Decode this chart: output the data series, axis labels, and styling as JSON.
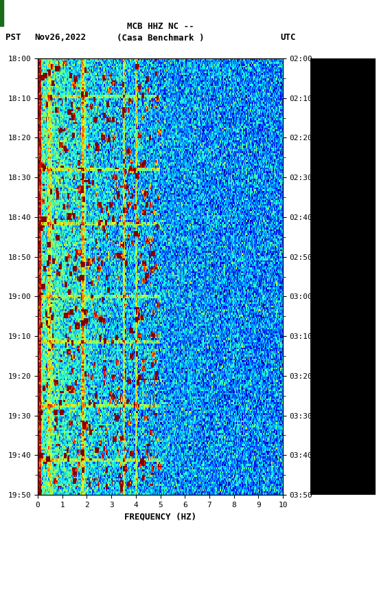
{
  "title_line1": "MCB HHZ NC --",
  "title_line2": "(Casa Benchmark )",
  "date_label": "Nov26,2022",
  "left_tz": "PST",
  "right_tz": "UTC",
  "freq_label": "FREQUENCY (HZ)",
  "freq_min": 0,
  "freq_max": 10,
  "freq_ticks": [
    0,
    1,
    2,
    3,
    4,
    5,
    6,
    7,
    8,
    9,
    10
  ],
  "time_ticks_left": [
    "18:00",
    "18:10",
    "18:20",
    "18:30",
    "18:40",
    "18:50",
    "19:00",
    "19:10",
    "19:20",
    "19:30",
    "19:40",
    "19:50"
  ],
  "time_ticks_right": [
    "02:00",
    "02:10",
    "02:20",
    "02:30",
    "02:40",
    "02:50",
    "03:00",
    "03:10",
    "03:20",
    "03:30",
    "03:40",
    "03:50"
  ],
  "background_color": "#ffffff",
  "colormap": "jet",
  "noise_seed": 42,
  "spectrogram_vmin": 0.0,
  "spectrogram_vmax": 1.0,
  "base_level": 0.25,
  "base_noise_std": 0.12
}
